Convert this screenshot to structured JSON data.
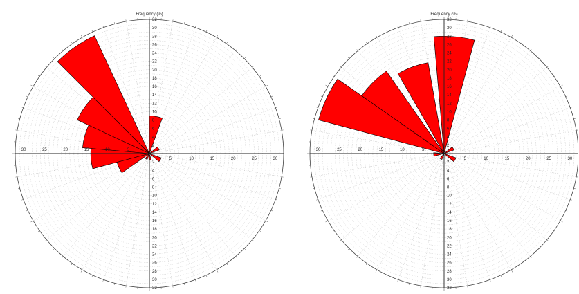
{
  "chart_data": [
    {
      "type": "polar_bar",
      "title": "",
      "radial_axis_label": "Frequency (%)",
      "r_max": 32,
      "radial_ticks_vertical": [
        "2",
        "4",
        "6",
        "8",
        "10",
        "12",
        "14",
        "16",
        "18",
        "20",
        "22",
        "24",
        "26",
        "28",
        "30",
        "32"
      ],
      "radial_ticks_horizontal": [
        "5",
        "10",
        "15",
        "20",
        "25",
        "30"
      ],
      "sector_width_deg": 20,
      "colors": {
        "fill": "#ff0000",
        "stroke": "#000000",
        "grid": "#9a9a9a"
      },
      "sectors": [
        {
          "direction_deg": -35,
          "value": 31
        },
        {
          "direction_deg": -55,
          "value": 19
        },
        {
          "direction_deg": -75,
          "value": 16
        },
        {
          "direction_deg": -95,
          "value": 14
        },
        {
          "direction_deg": -115,
          "value": 8
        },
        {
          "direction_deg": 10,
          "value": 9
        },
        {
          "direction_deg": 60,
          "value": 2.5
        },
        {
          "direction_deg": 120,
          "value": 3
        },
        {
          "direction_deg": 175,
          "value": 1.5
        },
        {
          "direction_deg": -150,
          "value": 1.5
        }
      ]
    },
    {
      "type": "polar_bar",
      "title": "",
      "radial_axis_label": "Frequency (%)",
      "r_max": 32,
      "radial_ticks_vertical": [
        "2",
        "4",
        "6",
        "8",
        "10",
        "12",
        "14",
        "16",
        "18",
        "20",
        "22",
        "24",
        "26",
        "28",
        "30",
        "32"
      ],
      "radial_ticks_horizontal": [
        "5",
        "10",
        "15",
        "20",
        "25",
        "30"
      ],
      "sector_width_deg": 20,
      "colors": {
        "fill": "#ff0000",
        "stroke": "#000000",
        "grid": "#9a9a9a"
      },
      "sectors": [
        {
          "direction_deg": 5,
          "value": 28
        },
        {
          "direction_deg": -20,
          "value": 22
        },
        {
          "direction_deg": -45,
          "value": 24
        },
        {
          "direction_deg": -65,
          "value": 31
        },
        {
          "direction_deg": -95,
          "value": 2.5
        },
        {
          "direction_deg": 60,
          "value": 2.5
        },
        {
          "direction_deg": 120,
          "value": 3
        },
        {
          "direction_deg": -150,
          "value": 1.5
        }
      ]
    }
  ]
}
